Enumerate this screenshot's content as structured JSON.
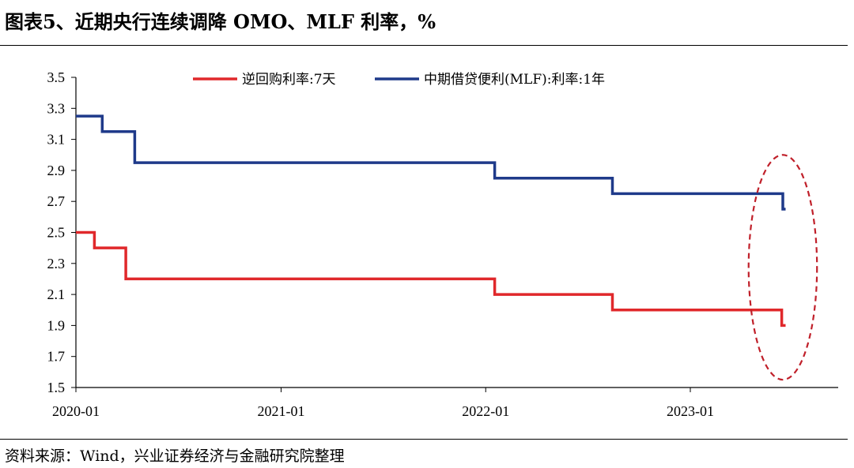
{
  "figure": {
    "title": "图表5、近期央行连续调降 OMO、MLF 利率，%",
    "source": "资料来源：Wind，兴业证券经济与金融研究院整理"
  },
  "chart_data": {
    "type": "line",
    "step": true,
    "x_axis": {
      "type": "date",
      "range": [
        "2020-01-01",
        "2023-06-20"
      ],
      "ticks": [
        "2020-01",
        "2021-01",
        "2022-01",
        "2023-01"
      ],
      "tick_dates": [
        "2020-01-01",
        "2021-01-01",
        "2022-01-01",
        "2023-01-01"
      ]
    },
    "y_axis": {
      "range": [
        1.5,
        3.5
      ],
      "ticks": [
        "1.5",
        "1.7",
        "1.9",
        "2.1",
        "2.3",
        "2.5",
        "2.7",
        "2.9",
        "3.1",
        "3.3",
        "3.5"
      ]
    },
    "grid": false,
    "legend": "top",
    "series": [
      {
        "name": "逆回购利率:7天",
        "color": "#e0282b",
        "points": [
          {
            "x": "2020-01-01",
            "y": 2.5
          },
          {
            "x": "2020-02-03",
            "y": 2.4
          },
          {
            "x": "2020-03-30",
            "y": 2.2
          },
          {
            "x": "2022-01-17",
            "y": 2.1
          },
          {
            "x": "2022-08-15",
            "y": 2.0
          },
          {
            "x": "2023-06-13",
            "y": 1.9
          },
          {
            "x": "2023-06-20",
            "y": 1.9
          }
        ]
      },
      {
        "name": "中期借贷便利(MLF):利率:1年",
        "color": "#1f3a8a",
        "points": [
          {
            "x": "2020-01-01",
            "y": 3.25
          },
          {
            "x": "2020-02-17",
            "y": 3.15
          },
          {
            "x": "2020-04-15",
            "y": 2.95
          },
          {
            "x": "2022-01-17",
            "y": 2.85
          },
          {
            "x": "2022-08-15",
            "y": 2.75
          },
          {
            "x": "2023-06-15",
            "y": 2.65
          },
          {
            "x": "2023-06-20",
            "y": 2.65
          }
        ]
      }
    ],
    "annotations": [
      {
        "type": "dashed-ellipse",
        "color": "#c0202a",
        "x_range": [
          "2023-04-15",
          "2023-08-15"
        ],
        "y_range": [
          1.55,
          3.0
        ]
      }
    ]
  }
}
